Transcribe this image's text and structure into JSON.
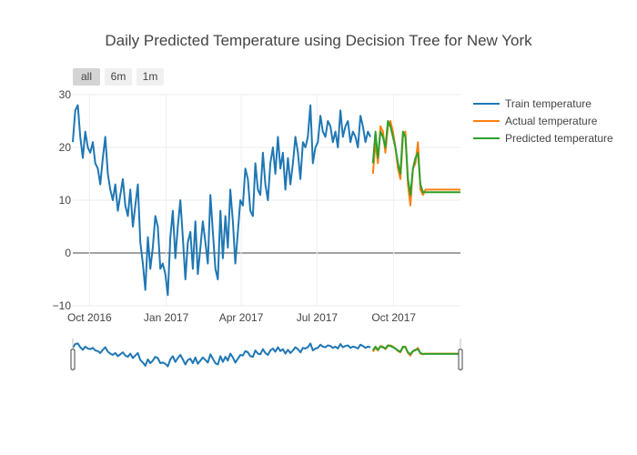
{
  "selector_buttons": [
    {
      "label": "all",
      "active": true
    },
    {
      "label": "6m",
      "active": false
    },
    {
      "label": "1m",
      "active": false
    }
  ],
  "chart_data": {
    "type": "line",
    "title": "Daily Predicted Temperature using Decision Tree for New York",
    "xlabel": "",
    "ylabel": "",
    "xlim": [
      "2016-09-11",
      "2017-12-20"
    ],
    "ylim": [
      -10,
      30
    ],
    "x_ticks": [
      {
        "date": "2016-10-01",
        "label": "Oct 2016"
      },
      {
        "date": "2017-01-01",
        "label": "Jan 2017"
      },
      {
        "date": "2017-04-01",
        "label": "Apr 2017"
      },
      {
        "date": "2017-07-01",
        "label": "Jul 2017"
      },
      {
        "date": "2017-10-01",
        "label": "Oct 2017"
      }
    ],
    "y_ticks": [
      -10,
      0,
      10,
      20,
      30
    ],
    "grid": true,
    "legend_position": "top-right",
    "range_slider": true,
    "series": [
      {
        "name": "Train temperature",
        "color": "#1f77b4",
        "x": [
          "2016-09-11",
          "2016-09-14",
          "2016-09-17",
          "2016-09-20",
          "2016-09-23",
          "2016-09-26",
          "2016-09-29",
          "2016-10-02",
          "2016-10-05",
          "2016-10-08",
          "2016-10-11",
          "2016-10-14",
          "2016-10-17",
          "2016-10-20",
          "2016-10-23",
          "2016-10-26",
          "2016-10-29",
          "2016-11-01",
          "2016-11-04",
          "2016-11-07",
          "2016-11-10",
          "2016-11-13",
          "2016-11-16",
          "2016-11-19",
          "2016-11-22",
          "2016-11-25",
          "2016-11-28",
          "2016-12-01",
          "2016-12-04",
          "2016-12-07",
          "2016-12-10",
          "2016-12-13",
          "2016-12-16",
          "2016-12-19",
          "2016-12-22",
          "2016-12-25",
          "2016-12-28",
          "2016-12-31",
          "2017-01-03",
          "2017-01-06",
          "2017-01-09",
          "2017-01-12",
          "2017-01-15",
          "2017-01-18",
          "2017-01-21",
          "2017-01-24",
          "2017-01-27",
          "2017-01-30",
          "2017-02-02",
          "2017-02-05",
          "2017-02-08",
          "2017-02-11",
          "2017-02-14",
          "2017-02-17",
          "2017-02-20",
          "2017-02-23",
          "2017-02-26",
          "2017-03-01",
          "2017-03-04",
          "2017-03-07",
          "2017-03-10",
          "2017-03-13",
          "2017-03-16",
          "2017-03-19",
          "2017-03-22",
          "2017-03-25",
          "2017-03-28",
          "2017-03-31",
          "2017-04-03",
          "2017-04-06",
          "2017-04-09",
          "2017-04-12",
          "2017-04-15",
          "2017-04-18",
          "2017-04-21",
          "2017-04-24",
          "2017-04-27",
          "2017-04-30",
          "2017-05-03",
          "2017-05-06",
          "2017-05-09",
          "2017-05-12",
          "2017-05-15",
          "2017-05-18",
          "2017-05-21",
          "2017-05-24",
          "2017-05-27",
          "2017-05-30",
          "2017-06-02",
          "2017-06-05",
          "2017-06-08",
          "2017-06-11",
          "2017-06-14",
          "2017-06-17",
          "2017-06-20",
          "2017-06-23",
          "2017-06-26",
          "2017-06-29",
          "2017-07-02",
          "2017-07-05",
          "2017-07-08",
          "2017-07-11",
          "2017-07-14",
          "2017-07-17",
          "2017-07-20",
          "2017-07-23",
          "2017-07-26",
          "2017-07-29",
          "2017-08-01",
          "2017-08-04",
          "2017-08-07",
          "2017-08-10",
          "2017-08-13",
          "2017-08-16",
          "2017-08-19",
          "2017-08-22",
          "2017-08-25",
          "2017-08-28",
          "2017-08-31",
          "2017-09-03"
        ],
        "values": [
          21,
          27,
          28,
          22,
          18,
          23,
          20,
          19,
          21,
          17,
          16,
          13,
          18,
          22,
          15,
          12,
          10,
          13,
          8,
          11,
          14,
          9,
          7,
          12,
          5,
          9,
          13,
          2,
          -2,
          -7,
          3,
          -3,
          1,
          7,
          5,
          -3,
          -2,
          -4,
          -8,
          3,
          8,
          -1,
          5,
          10,
          3,
          -5,
          2,
          4,
          -3,
          6,
          -4,
          1,
          6,
          2,
          -2,
          11,
          4,
          -3,
          -5,
          8,
          -1,
          7,
          1,
          12,
          6,
          -2,
          4,
          10,
          9,
          16,
          14,
          8,
          7,
          17,
          12,
          11,
          19,
          13,
          10,
          17,
          20,
          15,
          22,
          16,
          19,
          12,
          18,
          13,
          17,
          22,
          19,
          14,
          21,
          20,
          22,
          28,
          17,
          20,
          21,
          26,
          23,
          22,
          25,
          24,
          21,
          23,
          20,
          27,
          22,
          24,
          25,
          21,
          23,
          22,
          20,
          26,
          24,
          21,
          23,
          22
        ]
      },
      {
        "name": "Actual temperature",
        "color": "#ff7f0e",
        "x": [
          "2017-09-06",
          "2017-09-09",
          "2017-09-12",
          "2017-09-15",
          "2017-09-18",
          "2017-09-21",
          "2017-09-24",
          "2017-09-27",
          "2017-09-30",
          "2017-10-03",
          "2017-10-06",
          "2017-10-09",
          "2017-10-12",
          "2017-10-15",
          "2017-10-18",
          "2017-10-21",
          "2017-10-24",
          "2017-10-27",
          "2017-10-30",
          "2017-11-02",
          "2017-11-05",
          "2017-11-08",
          "2017-11-11",
          "2017-11-14",
          "2017-11-17",
          "2017-11-20",
          "2017-12-20"
        ],
        "values": [
          15,
          21,
          17,
          24,
          23,
          19,
          24,
          25,
          23,
          20,
          16,
          14,
          22,
          23,
          13,
          9,
          16,
          17,
          21,
          12,
          11,
          12,
          12,
          12,
          12,
          12,
          12
        ]
      },
      {
        "name": "Predicted temperature",
        "color": "#2ca02c",
        "x": [
          "2017-09-06",
          "2017-09-09",
          "2017-09-12",
          "2017-09-15",
          "2017-09-18",
          "2017-09-21",
          "2017-09-24",
          "2017-09-27",
          "2017-09-30",
          "2017-10-03",
          "2017-10-06",
          "2017-10-09",
          "2017-10-12",
          "2017-10-15",
          "2017-10-18",
          "2017-10-21",
          "2017-10-24",
          "2017-10-27",
          "2017-10-30",
          "2017-11-02",
          "2017-11-05",
          "2017-11-08",
          "2017-11-11",
          "2017-11-14",
          "2017-11-17",
          "2017-11-20",
          "2017-12-20"
        ],
        "values": [
          17,
          23,
          18,
          23,
          22,
          20,
          25,
          24,
          22,
          20,
          17,
          15,
          23,
          22,
          14,
          11,
          16,
          18,
          19,
          13,
          11.5,
          11.5,
          11.5,
          11.5,
          11.5,
          11.5,
          11.5
        ]
      }
    ]
  }
}
